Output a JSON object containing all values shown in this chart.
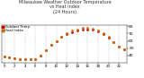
{
  "title": "Milwaukee Weather Outdoor Temperature\nvs Heat Index\n(24 Hours)",
  "title_fontsize": 3.5,
  "title_color": "#333333",
  "background_color": "#ffffff",
  "plot_bg_color": "#ffffff",
  "grid_color": "#bbbbbb",
  "hours": [
    0,
    1,
    2,
    3,
    4,
    5,
    6,
    7,
    8,
    9,
    10,
    11,
    12,
    13,
    14,
    15,
    16,
    17,
    18,
    19,
    20,
    21,
    22,
    23
  ],
  "temp": [
    38,
    37,
    36,
    35,
    35,
    34,
    35,
    40,
    47,
    54,
    60,
    65,
    69,
    72,
    74,
    76,
    76,
    75,
    73,
    69,
    64,
    58,
    52,
    48
  ],
  "heat_index": [
    38,
    37,
    36,
    35,
    35,
    34,
    35,
    40,
    47,
    54,
    60,
    65,
    70,
    74,
    76,
    78,
    78,
    77,
    74,
    70,
    65,
    58,
    52,
    48
  ],
  "temp_color": "#cc0000",
  "heat_index_color": "#cc6600",
  "ylim": [
    30,
    82
  ],
  "yticks": [
    40,
    50,
    60,
    70,
    80
  ],
  "ytick_labels": [
    "40",
    "50",
    "60",
    "70",
    "80"
  ],
  "ytick_fontsize": 3.2,
  "xtick_fontsize": 2.8,
  "marker_size": 0.9,
  "line_width": 0.0,
  "legend_fontsize": 2.8,
  "legend_labels": [
    "Outdoor Temp",
    "Heat Index"
  ],
  "xticks": [
    0,
    2,
    4,
    6,
    8,
    10,
    12,
    14,
    16,
    18,
    20,
    22
  ],
  "xtick_labels": [
    "0",
    "2",
    "4",
    "6",
    "8",
    "10",
    "12",
    "14",
    "16",
    "18",
    "20",
    "22"
  ]
}
